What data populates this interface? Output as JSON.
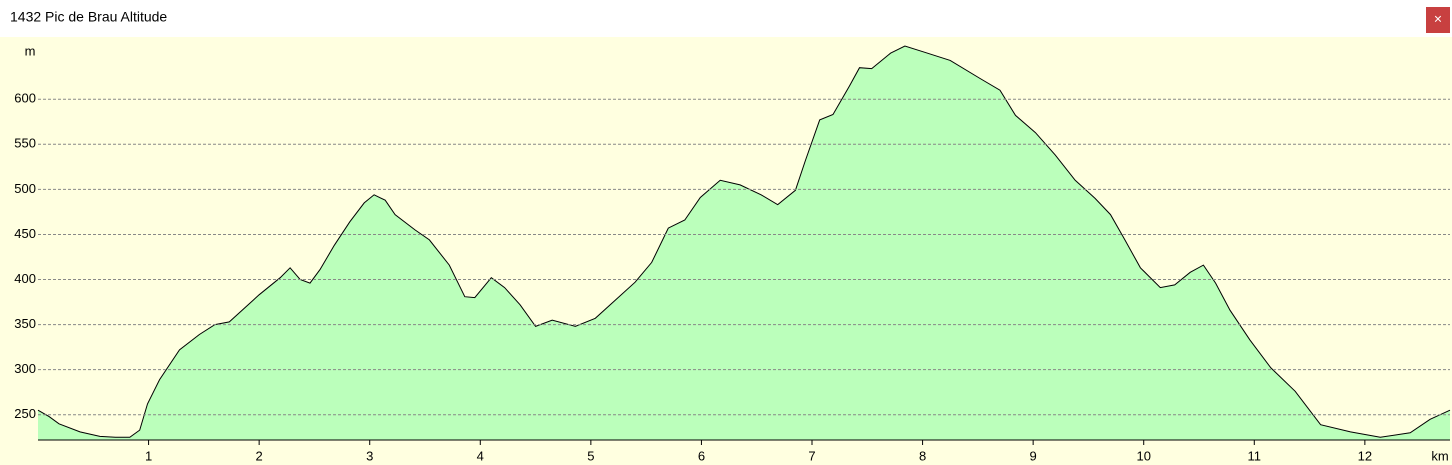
{
  "chart_data": {
    "type": "area",
    "title": "1432 Pic de Brau Altitude",
    "ylabel": "m",
    "xlabel": "km",
    "x": [
      0,
      0.1,
      0.19,
      0.38,
      0.56,
      0.7,
      0.83,
      0.92,
      0.99,
      1.1,
      1.28,
      1.46,
      1.6,
      1.73,
      2.0,
      2.19,
      2.28,
      2.37,
      2.46,
      2.55,
      2.68,
      2.82,
      2.95,
      3.04,
      3.14,
      3.23,
      3.41,
      3.54,
      3.72,
      3.86,
      3.95,
      4.1,
      4.22,
      4.36,
      4.5,
      4.65,
      4.86,
      5.04,
      5.22,
      5.4,
      5.55,
      5.7,
      5.85,
      5.99,
      6.17,
      6.35,
      6.54,
      6.69,
      6.85,
      6.94,
      7.07,
      7.19,
      7.34,
      7.43,
      7.54,
      7.71,
      7.84,
      8.02,
      8.25,
      8.52,
      8.7,
      8.84,
      9.02,
      9.2,
      9.38,
      9.56,
      9.7,
      9.83,
      9.97,
      10.15,
      10.28,
      10.42,
      10.54,
      10.65,
      10.78,
      10.96,
      11.15,
      11.37,
      11.6,
      11.87,
      12.14,
      12.41,
      12.59,
      12.77
    ],
    "values": [
      255,
      248,
      240,
      231,
      226,
      225,
      225,
      233,
      262,
      289,
      322,
      339,
      350,
      353,
      383,
      402,
      413,
      400,
      396,
      411,
      438,
      464,
      485,
      494,
      488,
      472,
      455,
      444,
      416,
      381,
      380,
      402,
      391,
      372,
      348,
      355,
      348,
      357,
      377,
      397,
      419,
      457,
      466,
      491,
      510,
      505,
      494,
      483,
      499,
      532,
      577,
      583,
      615,
      635,
      634,
      651,
      659,
      652,
      643,
      623,
      610,
      582,
      563,
      538,
      510,
      490,
      472,
      444,
      413,
      391,
      394,
      408,
      416,
      396,
      366,
      333,
      302,
      276,
      239,
      231,
      225,
      230,
      245,
      255
    ],
    "color": "#bbffbb",
    "xlim": [
      0,
      12.77
    ],
    "ylim": [
      222,
      669
    ],
    "xticks": [
      1,
      2,
      3,
      4,
      5,
      6,
      7,
      8,
      9,
      10,
      11,
      12
    ],
    "yticks": [
      250,
      300,
      350,
      400,
      450,
      500,
      550,
      600
    ],
    "grid": true
  },
  "close_button": "×"
}
